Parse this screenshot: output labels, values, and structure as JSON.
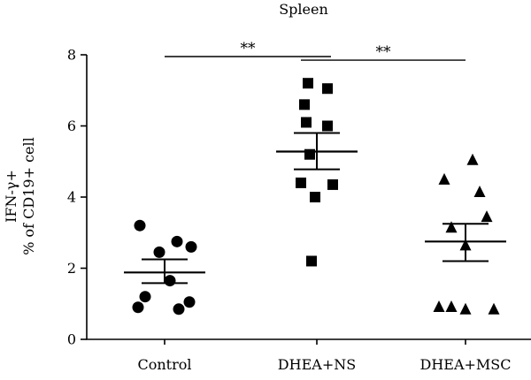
{
  "chart_data": {
    "type": "scatter",
    "title": "Spleen",
    "ylabel_lines": [
      "IFN-γ+",
      "% of CD19+ cell"
    ],
    "xlabel": "",
    "ylim": [
      0,
      8
    ],
    "yticks": [
      0,
      2,
      4,
      6,
      8
    ],
    "grid": false,
    "legend": "none",
    "categories": [
      "Control",
      "DHEA+NS",
      "DHEA+MSC"
    ],
    "series": [
      {
        "category": "Control",
        "marker": "circle",
        "values": [
          3.2,
          2.75,
          2.6,
          2.45,
          1.65,
          1.2,
          1.05,
          0.9,
          0.85
        ],
        "mean": 1.88,
        "sem": [
          1.58,
          2.25
        ]
      },
      {
        "category": "DHEA+NS",
        "marker": "square",
        "values": [
          7.2,
          7.05,
          6.6,
          6.1,
          6.0,
          5.2,
          4.4,
          4.35,
          4.0,
          2.2
        ],
        "mean": 5.28,
        "sem": [
          4.78,
          5.8
        ]
      },
      {
        "category": "DHEA+MSC",
        "marker": "triangle",
        "values": [
          5.05,
          4.5,
          4.15,
          3.45,
          3.15,
          2.65,
          0.92,
          0.85,
          0.85,
          0.92
        ],
        "mean": 2.75,
        "sem": [
          2.2,
          3.25
        ]
      }
    ],
    "significance": [
      {
        "from": "Control",
        "to": "DHEA+NS",
        "y": 7.95,
        "label": "**"
      },
      {
        "from": "DHEA+NS",
        "to": "DHEA+MSC",
        "y": 7.85,
        "label": "**"
      }
    ]
  }
}
